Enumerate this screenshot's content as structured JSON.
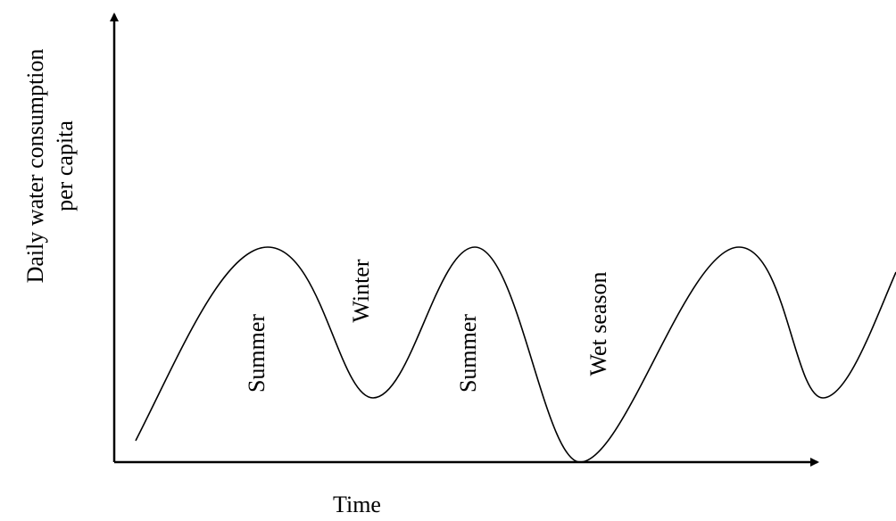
{
  "axes": {
    "y_label": [
      "Daily water consumption",
      "per capita"
    ],
    "x_label": "Time"
  },
  "annotations": [
    "Summer",
    "Winter",
    "Summer",
    "Wet season"
  ]
}
